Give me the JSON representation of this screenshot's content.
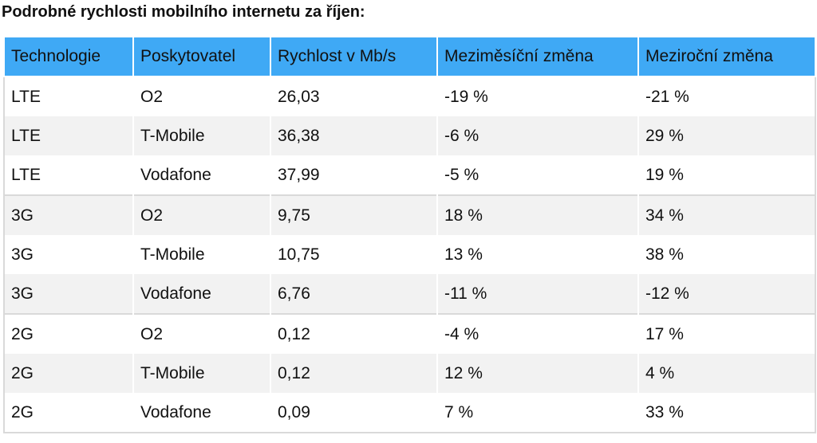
{
  "title": "Podrobné rychlosti mobilního internetu za říjen:",
  "table": {
    "header_color": "#3fa9f5",
    "columns": [
      "Technologie",
      "Poskytovatel",
      "Rychlost v Mb/s",
      "Meziměsíční změna",
      "Meziroční změna"
    ],
    "rows": [
      [
        "LTE",
        "O2",
        "26,03",
        "-19 %",
        "-21 %"
      ],
      [
        "LTE",
        "T-Mobile",
        "36,38",
        "-6 %",
        "29 %"
      ],
      [
        "LTE",
        "Vodafone",
        "37,99",
        "-5 %",
        "19 %"
      ],
      [
        "3G",
        "O2",
        "9,75",
        "18 %",
        "34 %"
      ],
      [
        "3G",
        "T-Mobile",
        "10,75",
        "13 %",
        "38 %"
      ],
      [
        "3G",
        "Vodafone",
        "6,76",
        "-11 %",
        "-12 %"
      ],
      [
        "2G",
        "O2",
        "0,12",
        "-4 %",
        "17 %"
      ],
      [
        "2G",
        "T-Mobile",
        "0,12",
        "12 %",
        "4 %"
      ],
      [
        "2G",
        "Vodafone",
        "0,09",
        "7 %",
        "33 %"
      ]
    ]
  }
}
